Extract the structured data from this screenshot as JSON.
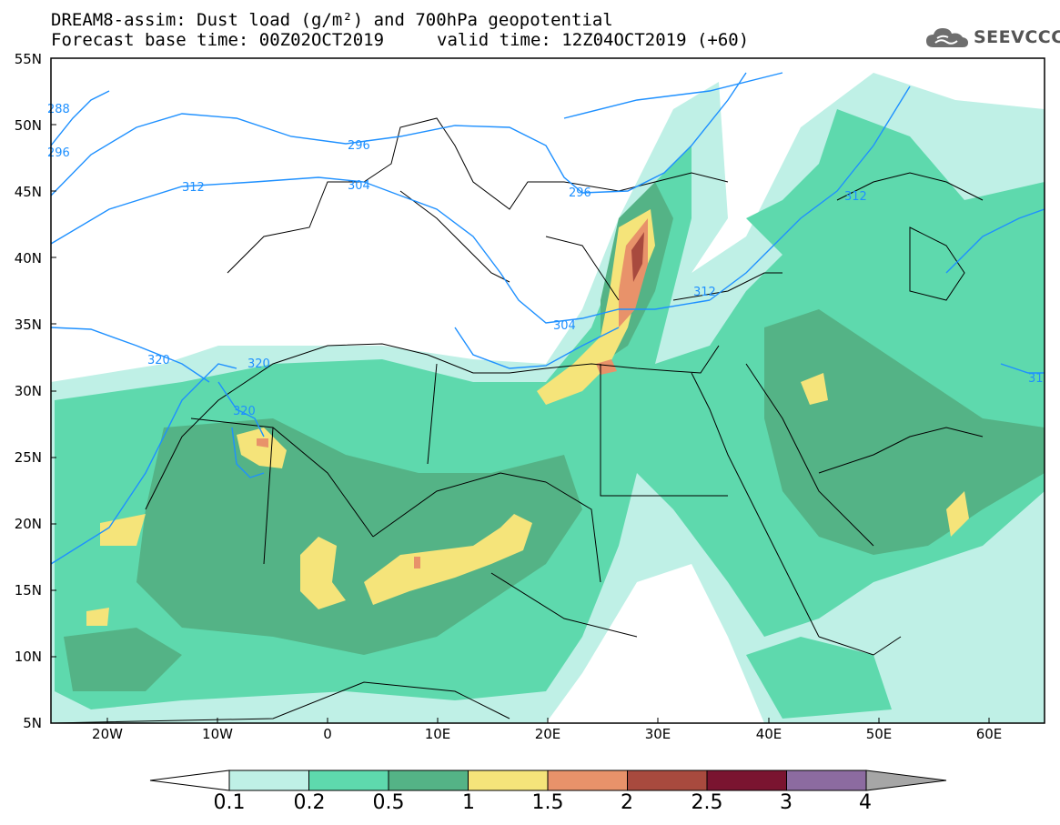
{
  "title_line1": "DREAM8-assim: Dust load (g/m²) and 700hPa geopotential",
  "title_line2_left": "Forecast base time: 00Z02OCT2019",
  "title_line2_right": "valid time: 12Z04OCT2019 (+60)",
  "logo_text": "SEEVCCC",
  "logo_icon": "cloud-icon",
  "lat_labels": [
    "55N",
    "50N",
    "45N",
    "40N",
    "35N",
    "30N",
    "25N",
    "20N",
    "15N",
    "10N",
    "5N"
  ],
  "lon_labels": [
    "20W",
    "10W",
    "0",
    "10E",
    "20E",
    "30E",
    "40E",
    "50E",
    "60E"
  ],
  "contour_labels": [
    "288",
    "296",
    "296",
    "296",
    "304",
    "304",
    "312",
    "312",
    "312",
    "320",
    "320",
    "320",
    "31"
  ],
  "colorbar": {
    "labels": [
      "0.1",
      "0.2",
      "0.5",
      "1",
      "1.5",
      "2",
      "2.5",
      "3",
      "4"
    ],
    "colors": [
      "#bff0e6",
      "#5ed9ad",
      "#54b386",
      "#f5e47a",
      "#e8926a",
      "#a84a3e",
      "#7a1430",
      "#8c6ba0",
      "#a6a6a6"
    ]
  }
}
